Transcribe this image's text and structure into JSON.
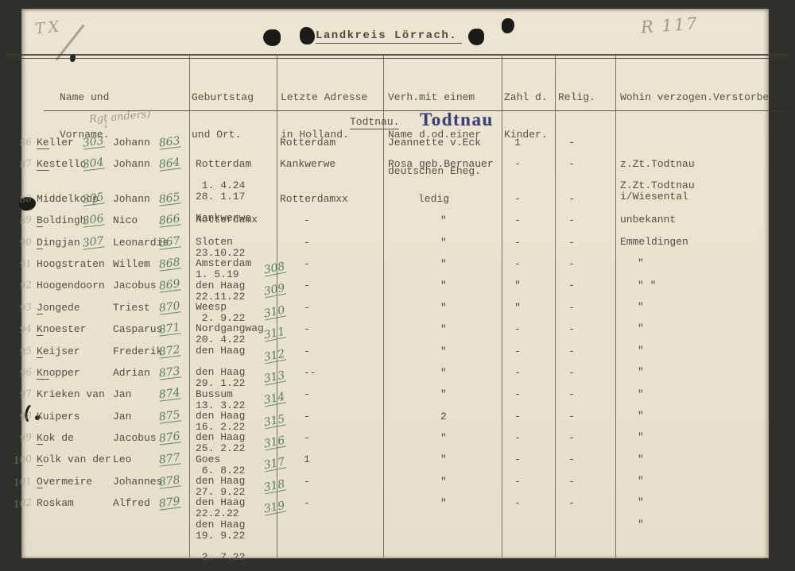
{
  "page": {
    "corner_mark": "TX",
    "archive_ref": "R 117",
    "title": "Landkreis Lörrach.",
    "annotation": "Rgt anders)",
    "annotation_arrow": "↓",
    "section_typed": "Todtnau.",
    "section_stamp": "Todtnau",
    "colors": {
      "paper": "#e9e2cf",
      "surround": "#30302b",
      "typescript": "#514e45",
      "green_ink": "#5b7e62",
      "pencil": "#928c79",
      "stamp_blue": "#3b4277"
    }
  },
  "table": {
    "headers": {
      "name": [
        "Name und",
        "Vorname."
      ],
      "birth": [
        "Geburtstag",
        "und Ort."
      ],
      "address": [
        "Letzte Adresse",
        "in Holland."
      ],
      "marriage": [
        "Verh.mit einem",
        "Name d.od.einer",
        "deutschen Eheg."
      ],
      "children": [
        "Zahl d.",
        "Kinder."
      ],
      "religion": [
        "Relig."
      ],
      "moved": [
        "Wohin verzogen.Verstorbe"
      ]
    }
  },
  "rows": [
    {
      "m": "86",
      "n": "Keller",
      "ul": 2,
      "g1": "303",
      "f": "Johann",
      "g2": "863",
      "b1": "Rotterdam",
      "b2": "28. 1.17",
      "bg": "",
      "a": "Rotterdam",
      "v": "Jeannette v.Eck",
      "k": "1",
      "r": "-",
      "w1": "z.Zt.Todtnau",
      "w2": "i/Wiesental"
    },
    {
      "m": "87",
      "n": "Kestello",
      "ul": 2,
      "g1": "304",
      "f": "Johann",
      "g2": "864",
      "b1": " 1. 4.24",
      "b2": "Kankwerwe",
      "bg": "",
      "a": "Kankwerwe",
      "v": "Rosa geb.Bernauer",
      "k": "-",
      "r": "-",
      "w1": "Z.Zt.Todtnau",
      "w2": ""
    },
    {
      "m": "88",
      "n": "Middelkoop",
      "ul": 0,
      "g1": "305",
      "f": "Johann",
      "g2": "865",
      "b1": "Rotterdamx",
      "b2": "23.10.22",
      "bg": "",
      "a": "Rotterdamxx",
      "v": "ledig",
      "k": "-",
      "r": "-",
      "w1": "unbekannt",
      "w2": ""
    },
    {
      "m": "89",
      "n": "Boldingh",
      "ul": 1,
      "g1": "306",
      "f": "Nico",
      "g2": "866",
      "b1": "Sloten",
      "b2": "1. 5.19",
      "bg": "",
      "a": "-",
      "v": "\"",
      "k": "-",
      "r": "-",
      "w1": "Emmeldingen",
      "w2": ""
    },
    {
      "m": "90",
      "n": "Dingjan",
      "ul": 1,
      "g1": "307",
      "f": "Leonardis",
      "g2": "867",
      "b1": "Amsterdam",
      "b2": "22.11.22",
      "bg": "",
      "a": "-",
      "v": "\"",
      "k": "-",
      "r": "-",
      "w1": "\"",
      "w2": ""
    },
    {
      "m": "91",
      "n": "Hoogstraten",
      "ul": 0,
      "g1": "",
      "f": "Willem",
      "g2": "868",
      "b1": "den Haag",
      "b2": " 2. 9.22",
      "bg": "308",
      "a": "-",
      "v": "\"",
      "k": "-",
      "r": "-",
      "w1": "\" \"",
      "w2": ""
    },
    {
      "m": "92",
      "n": "Hoogendoorn",
      "ul": 0,
      "g1": "",
      "f": "Jacobus",
      "g2": "869",
      "b1": "Weesp",
      "b2": "20. 4.22",
      "bg": "309",
      "a": "-",
      "v": "\"",
      "k": "\"",
      "r": "-",
      "w1": "\"",
      "w2": ""
    },
    {
      "m": "93",
      "n": "Jongede",
      "ul": 1,
      "g1": "",
      "f": "Triest",
      "g2": "870",
      "b1": "Nordgangwag",
      "b2": "",
      "bg": "310",
      "a": "-",
      "v": "\"",
      "k": "\"",
      "r": "-",
      "w1": "\"",
      "w2": ""
    },
    {
      "m": "94",
      "n": "Knoester",
      "ul": 1,
      "g1": "",
      "f": "Casparus",
      "g2": "871",
      "b1": "den Haag",
      "b2": "29. 1.22",
      "bg": "311",
      "a": "-",
      "v": "\"",
      "k": "-",
      "r": "-",
      "w1": "\"",
      "w2": ""
    },
    {
      "m": "95",
      "n": "Keijser",
      "ul": 1,
      "g1": "",
      "f": "Frederik",
      "g2": "872",
      "b1": "den Haag",
      "b2": "13. 3.22",
      "bg": "312",
      "a": "-",
      "v": "\"",
      "k": "-",
      "r": "-",
      "w1": "\"",
      "w2": ""
    },
    {
      "m": "96",
      "n": "Knopper",
      "ul": 2,
      "g1": "",
      "f": "Adrian",
      "g2": "873",
      "b1": "Bussum",
      "b2": "16. 2.22",
      "bg": "313",
      "a": "--",
      "v": "\"",
      "k": "-",
      "r": "-",
      "w1": "\"",
      "w2": ""
    },
    {
      "m": "97",
      "n": "Krieken van",
      "ul": 0,
      "g1": "",
      "f": "Jan",
      "g2": "874",
      "b1": "den Haag",
      "b2": "25. 2.22",
      "bg": "314",
      "a": "-",
      "v": "\"",
      "k": "-",
      "r": "-",
      "w1": "\"",
      "w2": ""
    },
    {
      "m": "98",
      "n": "Kuipers",
      "ul": 0,
      "g1": "",
      "f": "Jan",
      "g2": "875",
      "b1": "den Haag",
      "b2": " 6. 8.22",
      "bg": "315",
      "a": "-",
      "v": "2",
      "k": "-",
      "r": "-",
      "w1": "\"",
      "w2": ""
    },
    {
      "m": "99",
      "n": "Kok de",
      "ul": 1,
      "g1": "",
      "f": "Jacobus",
      "g2": "876",
      "b1": "Goes",
      "b2": "27. 9.22",
      "bg": "316",
      "a": "-",
      "v": "\"",
      "k": "-",
      "r": "-",
      "w1": "\"",
      "w2": ""
    },
    {
      "m": "100",
      "n": "Kolk van der",
      "ul": 1,
      "g1": "",
      "f": "Leo",
      "g2": "877",
      "b1": "den Haag",
      "b2": "22.2.22",
      "bg": "317",
      "a": "1",
      "v": "\"",
      "k": "-",
      "r": "-",
      "w1": "\"",
      "w2": ""
    },
    {
      "m": "101",
      "n": "Overmeire",
      "ul": 1,
      "g1": "",
      "f": "Johannes",
      "g2": "878",
      "b1": "den Haag",
      "b2": "19. 9.22",
      "bg": "318",
      "a": "-",
      "v": "\"",
      "k": "-",
      "r": "-",
      "w1": "\"",
      "w2": ""
    },
    {
      "m": "102",
      "n": "Roskam",
      "ul": 0,
      "g1": "",
      "f": "Alfred",
      "g2": "879",
      "b1": "den Haag",
      "b2": " 2. 7.22",
      "bg": "319",
      "a": "-",
      "v": "\"",
      "k": "-",
      "r": "-",
      "w1": "\"",
      "w2": ""
    }
  ]
}
